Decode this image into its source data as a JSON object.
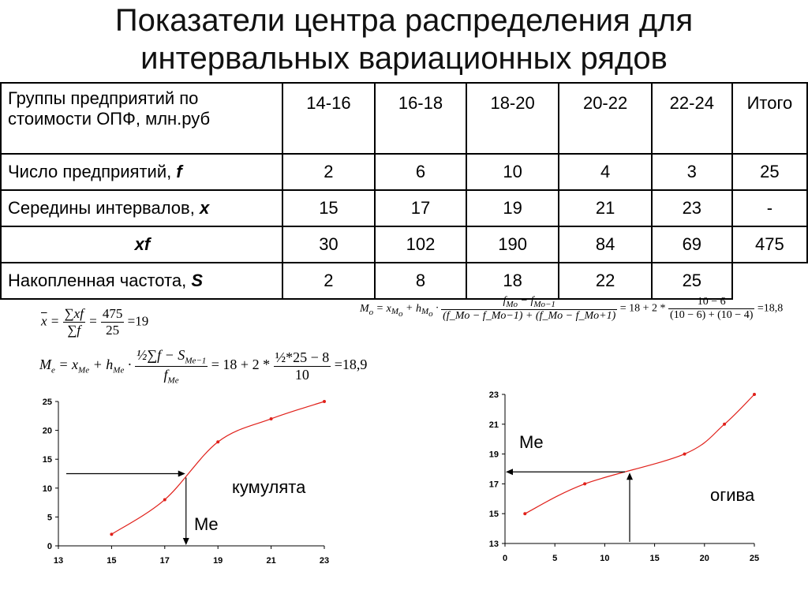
{
  "title": {
    "line1": "Показатели центра распределения для",
    "line2": "интервальных  вариационных рядов"
  },
  "table": {
    "header": {
      "label": "Группы предприятий по стоимости ОПФ, млн.руб",
      "columns": [
        "14-16",
        "16-18",
        "18-20",
        "20-22",
        "22-24",
        "Итого"
      ]
    },
    "rows": [
      {
        "label": "Число предприятий,",
        "symbol": "f",
        "values": [
          "2",
          "6",
          "10",
          "4",
          "3",
          "25"
        ]
      },
      {
        "label": "Середины интервалов,",
        "symbol": "x",
        "values": [
          "15",
          "17",
          "19",
          "21",
          "23",
          "-"
        ]
      },
      {
        "label": "",
        "symbol": "xf",
        "values": [
          "30",
          "102",
          "190",
          "84",
          "69",
          "475"
        ]
      },
      {
        "label": "Накопленная частота,",
        "symbol": "S",
        "values": [
          "2",
          "8",
          "18",
          "22",
          "25",
          ""
        ]
      }
    ]
  },
  "formulas": {
    "mean": {
      "lhs": "x",
      "num": "∑xf",
      "den": "∑f",
      "num_val": "475",
      "den_val": "25",
      "result": "19"
    },
    "median": {
      "lhs": "M",
      "lhs_sub": "e",
      "x_sub": "M",
      "x_sub2": "e",
      "h_sub": "M",
      "h_sub2": "e",
      "num": "½∑f − S",
      "num_sub": "Me−1",
      "den": "f",
      "den_sub": "Me",
      "mid": "= 18 + 2 *",
      "num2": "½*25 − 8",
      "den2": "10",
      "result": "18,9"
    },
    "mode": {
      "lhs": "M",
      "lhs_sub": "o",
      "num": "f",
      "num_sub": "Mo",
      "num_minus": "f",
      "num_minus_sub": "Mo−1",
      "den": "(f_Mo − f_Mo−1) + (f_Mo − f_Mo+1)",
      "mid": "= 18 + 2 *",
      "num2": "10 − 6",
      "den2": "(10 − 6) + (10 − 4)",
      "result": "18,8"
    }
  },
  "chart_data": [
    {
      "type": "line",
      "name_label": "кумулята",
      "marker_label": "Me",
      "x": [
        15,
        17,
        19,
        21,
        23
      ],
      "y": [
        2,
        8,
        18,
        22,
        25
      ],
      "xlim": [
        13,
        23
      ],
      "ylim": [
        0,
        25
      ],
      "xticks": [
        "13",
        "15",
        "17",
        "19",
        "21",
        "23"
      ],
      "yticks": [
        "0",
        "5",
        "10",
        "15",
        "20",
        "25"
      ],
      "xtick_values": [
        13,
        15,
        17,
        19,
        21,
        23
      ],
      "ytick_values": [
        0,
        5,
        10,
        15,
        20,
        25
      ],
      "median_x": 17.8,
      "median_y": 12.5,
      "line_color": "#e0201a",
      "grid": false
    },
    {
      "type": "line",
      "name_label": "огива",
      "marker_label": "Me",
      "x": [
        2,
        8,
        18,
        22,
        25
      ],
      "y": [
        15,
        17,
        19,
        21,
        23
      ],
      "xlim": [
        0,
        25
      ],
      "ylim": [
        13,
        23
      ],
      "xticks": [
        "0",
        "5",
        "10",
        "15",
        "20",
        "25"
      ],
      "yticks": [
        "13",
        "15",
        "17",
        "19",
        "21",
        "23"
      ],
      "xtick_values": [
        0,
        5,
        10,
        15,
        20,
        25
      ],
      "ytick_values": [
        13,
        15,
        17,
        19,
        21,
        23
      ],
      "median_x": 12.5,
      "median_y": 17.8,
      "line_color": "#e0201a",
      "grid": false
    }
  ]
}
